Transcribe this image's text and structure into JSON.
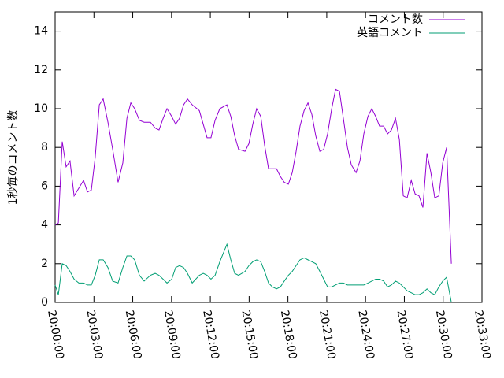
{
  "chart_data": {
    "type": "line",
    "y_label": "1秒毎のコメント数",
    "x": [
      "20:00:00",
      "20:00:15",
      "20:00:33",
      "20:00:51",
      "20:01:09",
      "20:01:28",
      "20:01:50",
      "20:02:12",
      "20:02:30",
      "20:02:48",
      "20:03:06",
      "20:03:25",
      "20:03:43",
      "20:04:05",
      "20:04:27",
      "20:04:52",
      "20:05:14",
      "20:05:33",
      "20:05:51",
      "20:06:09",
      "20:06:31",
      "20:06:53",
      "20:07:22",
      "20:07:44",
      "20:08:02",
      "20:08:21",
      "20:08:39",
      "20:09:01",
      "20:09:19",
      "20:09:37",
      "20:09:56",
      "20:10:14",
      "20:10:36",
      "20:11:09",
      "20:11:27",
      "20:11:45",
      "20:12:03",
      "20:12:22",
      "20:12:44",
      "20:13:17",
      "20:13:35",
      "20:13:53",
      "20:14:11",
      "20:14:41",
      "20:14:59",
      "20:15:17",
      "20:15:35",
      "20:15:54",
      "20:16:12",
      "20:16:30",
      "20:16:48",
      "20:17:07",
      "20:17:25",
      "20:17:43",
      "20:18:02",
      "20:18:20",
      "20:18:38",
      "20:18:56",
      "20:19:15",
      "20:19:33",
      "20:19:51",
      "20:20:09",
      "20:20:28",
      "20:20:46",
      "20:21:04",
      "20:21:23",
      "20:21:41",
      "20:21:59",
      "20:22:17",
      "20:22:36",
      "20:22:54",
      "20:23:16",
      "20:23:34",
      "20:23:52",
      "20:24:11",
      "20:24:29",
      "20:24:47",
      "20:25:05",
      "20:25:24",
      "20:25:42",
      "20:26:00",
      "20:26:19",
      "20:26:37",
      "20:26:55",
      "20:27:13",
      "20:27:32",
      "20:27:50",
      "20:28:08",
      "20:28:26",
      "20:28:45",
      "20:29:03",
      "20:29:21",
      "20:29:40",
      "20:29:58",
      "20:30:16",
      "20:30:38"
    ],
    "series": [
      {
        "name": "コメント数",
        "color": "#9400d3",
        "values": [
          4.0,
          4.1,
          8.3,
          7.0,
          7.3,
          5.5,
          5.9,
          6.3,
          5.7,
          5.8,
          7.5,
          10.2,
          10.5,
          9.3,
          7.9,
          6.2,
          7.2,
          9.5,
          10.3,
          10.0,
          9.4,
          9.3,
          9.3,
          9.0,
          8.9,
          9.5,
          10.0,
          9.6,
          9.2,
          9.5,
          10.2,
          10.5,
          10.2,
          9.9,
          9.2,
          8.5,
          8.5,
          9.4,
          10.0,
          10.2,
          9.6,
          8.6,
          7.9,
          7.8,
          8.2,
          9.2,
          10.0,
          9.6,
          8.1,
          6.9,
          6.9,
          6.9,
          6.5,
          6.2,
          6.1,
          6.7,
          7.8,
          9.1,
          9.9,
          10.3,
          9.7,
          8.6,
          7.8,
          7.9,
          8.7,
          10.0,
          11.0,
          10.9,
          9.5,
          8.0,
          7.1,
          6.7,
          7.3,
          8.7,
          9.6,
          10.0,
          9.6,
          9.1,
          9.1,
          8.7,
          8.9,
          9.5,
          8.4,
          5.5,
          5.4,
          6.3,
          5.6,
          5.5,
          4.9,
          7.7,
          6.7,
          5.4,
          5.5,
          7.2,
          8.0,
          2.0
        ]
      },
      {
        "name": "英語コメント",
        "color": "#009e73",
        "values": [
          0.9,
          0.4,
          2.0,
          1.9,
          1.6,
          1.2,
          1.0,
          1.0,
          0.9,
          0.9,
          1.4,
          2.2,
          2.2,
          1.8,
          1.1,
          1.0,
          1.8,
          2.4,
          2.4,
          2.2,
          1.4,
          1.1,
          1.4,
          1.5,
          1.4,
          1.2,
          1.0,
          1.2,
          1.8,
          1.9,
          1.8,
          1.5,
          1.0,
          1.4,
          1.5,
          1.4,
          1.2,
          1.4,
          2.1,
          3.0,
          2.2,
          1.5,
          1.4,
          1.6,
          1.9,
          2.1,
          2.2,
          2.1,
          1.6,
          1.0,
          0.8,
          0.7,
          0.8,
          1.1,
          1.4,
          1.6,
          1.9,
          2.2,
          2.3,
          2.2,
          2.1,
          2.0,
          1.6,
          1.2,
          0.8,
          0.8,
          0.9,
          1.0,
          1.0,
          0.9,
          0.9,
          0.9,
          0.9,
          0.9,
          1.0,
          1.1,
          1.2,
          1.2,
          1.1,
          0.8,
          0.9,
          1.1,
          1.0,
          0.8,
          0.6,
          0.5,
          0.4,
          0.4,
          0.5,
          0.7,
          0.5,
          0.4,
          0.8,
          1.1,
          1.3,
          0.0
        ]
      }
    ],
    "xlim": [
      "20:00:00",
      "20:33:00"
    ],
    "xticks": [
      "20:00:00",
      "20:03:00",
      "20:06:00",
      "20:09:00",
      "20:12:00",
      "20:15:00",
      "20:18:00",
      "20:21:00",
      "20:24:00",
      "20:27:00",
      "20:30:00",
      "20:33:00"
    ],
    "ylim": [
      0,
      15
    ],
    "yticks": [
      0,
      2,
      4,
      6,
      8,
      10,
      12,
      14
    ],
    "legend": "top-right"
  }
}
